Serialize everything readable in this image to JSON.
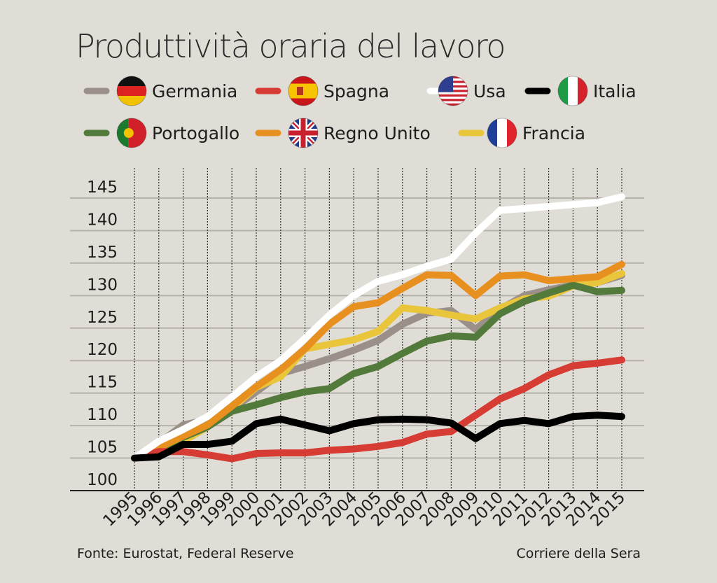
{
  "chart_data": {
    "type": "line",
    "title": "Produttività oraria del lavoro",
    "x": [
      1995,
      1996,
      1997,
      1998,
      1999,
      2000,
      2001,
      2002,
      2003,
      2004,
      2005,
      2006,
      2007,
      2008,
      2009,
      2010,
      2011,
      2012,
      2013,
      2014,
      2015
    ],
    "ylim": [
      100,
      145
    ],
    "yticks": [
      100,
      105,
      110,
      115,
      120,
      125,
      130,
      135,
      140,
      145
    ],
    "grid": true,
    "legend_placement": "top",
    "series": [
      {
        "name": "Germania",
        "color": "#9b8f8a",
        "flag": "germany-flag",
        "values": [
          105,
          107.3,
          110.1,
          110.9,
          112.5,
          115.2,
          118,
          119.1,
          120.3,
          121.6,
          123.1,
          125.6,
          127.3,
          127.7,
          124.8,
          127.9,
          130,
          130.9,
          131.6,
          132,
          133.1
        ]
      },
      {
        "name": "Francia",
        "color": "#e9c53b",
        "flag": "france-flag",
        "values": [
          105,
          106.2,
          107.6,
          109.8,
          112.7,
          115.9,
          117.5,
          121.8,
          122.5,
          123.2,
          124.5,
          128.1,
          127.7,
          127,
          126.4,
          128.1,
          129.5,
          129.9,
          131.5,
          132,
          133.4
        ]
      },
      {
        "name": "Portogallo",
        "color": "#527a3b",
        "flag": "portugal-flag",
        "values": [
          105,
          106.2,
          108.2,
          109.8,
          112.2,
          113.2,
          114.3,
          115.2,
          115.7,
          118,
          119.1,
          121.1,
          123,
          123.8,
          123.6,
          127.2,
          129.1,
          130.4,
          131.6,
          130.6,
          130.8
        ]
      },
      {
        "name": "Regno Unito",
        "color": "#e8901f",
        "flag": "uk-flag",
        "values": [
          105,
          106.6,
          108.4,
          110.1,
          113,
          116,
          118.6,
          121.8,
          125.6,
          128.3,
          128.9,
          131.1,
          133.2,
          133.1,
          130,
          133,
          133.2,
          132.3,
          132.6,
          132.9,
          134.8
        ]
      },
      {
        "name": "Spagna",
        "color": "#d63c33",
        "flag": "spain-flag",
        "values": [
          105,
          106,
          106,
          105.5,
          104.9,
          105.7,
          105.8,
          105.8,
          106.2,
          106.4,
          106.8,
          107.4,
          108.7,
          109.1,
          111.6,
          114.1,
          115.7,
          117.8,
          119.2,
          119.6,
          120.1
        ]
      },
      {
        "name": "Usa",
        "color": "#ffffff",
        "flag": "usa-flag",
        "values": [
          105,
          107.6,
          109.4,
          111.4,
          114.4,
          117.5,
          120,
          123.4,
          127,
          130,
          132.2,
          133.2,
          134.5,
          135.6,
          139.6,
          143.1,
          143.4,
          143.7,
          144,
          144.3,
          145.2
        ]
      },
      {
        "name": "Italia",
        "color": "#000000",
        "flag": "italy-flag",
        "values": [
          105,
          105.2,
          107.1,
          107.1,
          107.6,
          110.3,
          111,
          110.1,
          109.2,
          110.3,
          110.9,
          111,
          110.9,
          110.4,
          108,
          110.3,
          110.8,
          110.3,
          111.4,
          111.6,
          111.4
        ]
      }
    ],
    "legend_order": [
      "Germania",
      "Spagna",
      "Usa",
      "Italia",
      "Portogallo",
      "Regno Unito",
      "Francia"
    ]
  },
  "footer": {
    "source": "Fonte: Eurostat, Federal Reserve",
    "publisher": "Corriere della Sera"
  }
}
